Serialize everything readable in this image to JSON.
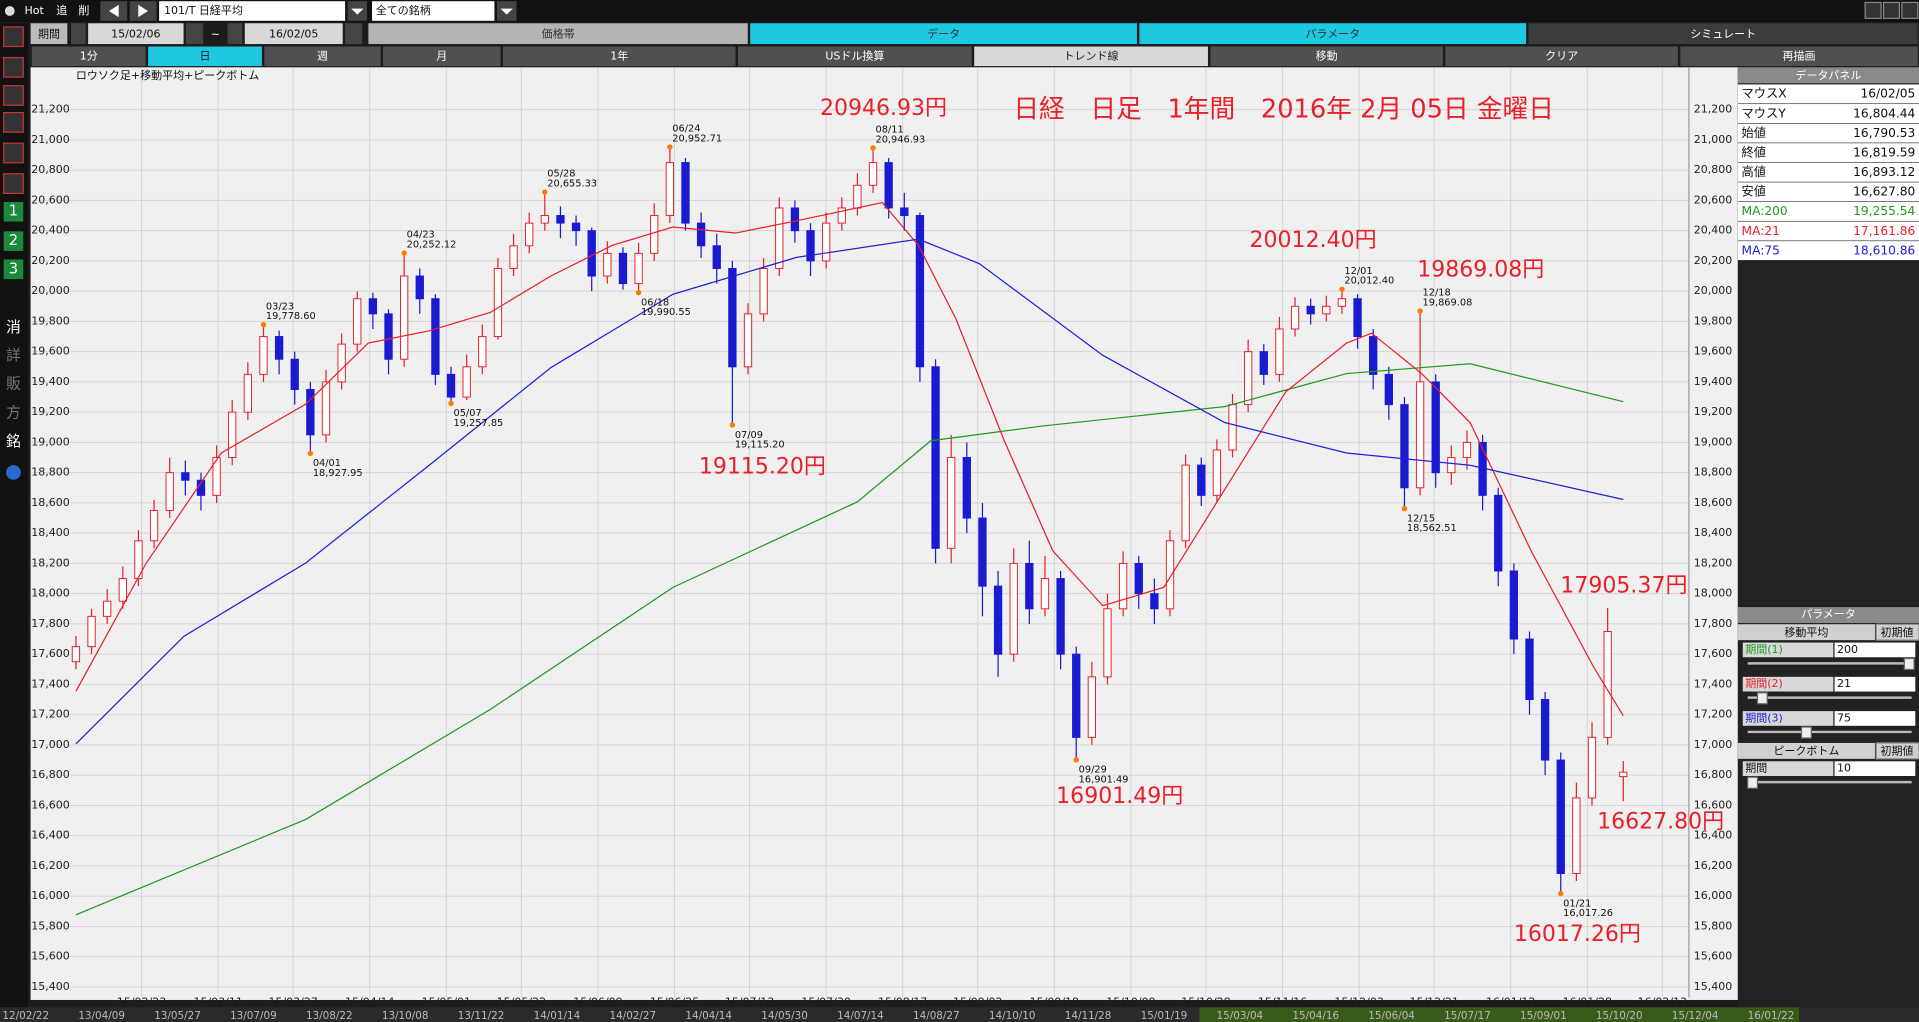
{
  "toolbar": {
    "hot": "Hot",
    "add": "追",
    "del": "削",
    "symbol": "101/T 日経平均",
    "universe": "全ての銘柄"
  },
  "period": {
    "label": "期間",
    "from": "15/02/06",
    "sep": "~",
    "to": "16/02/05"
  },
  "tabs": [
    "価格帯",
    "データ",
    "パラメータ",
    "シミュレート"
  ],
  "buttons": [
    "1分",
    "日",
    "週",
    "月",
    "1年",
    "USドル換算",
    "トレンド線",
    "移動",
    "クリア",
    "再描画"
  ],
  "sidebar": [
    "1",
    "2",
    "3",
    "消",
    "詳",
    "販",
    "方",
    "銘"
  ],
  "chart_data": {
    "type": "candlestick",
    "title": "日経　日足　1年間　2016年 2月 05日 金曜日",
    "subtitle": "ロウソク足+移動平均+ピークボトム",
    "up_color": "#e8202a",
    "down_color": "#1a1ad0",
    "grid": true,
    "xlim": [
      -2.9,
      103.2
    ],
    "ylim": [
      15330,
      21480
    ],
    "xticks": [
      {
        "value": 4.2,
        "label": "15/02/23"
      },
      {
        "value": 9.1,
        "label": "15/03/11"
      },
      {
        "value": 13.9,
        "label": "15/03/27"
      },
      {
        "value": 18.8,
        "label": "15/04/14"
      },
      {
        "value": 23.7,
        "label": "15/05/01"
      },
      {
        "value": 28.5,
        "label": "15/05/22"
      },
      {
        "value": 33.4,
        "label": "15/06/09"
      },
      {
        "value": 38.3,
        "label": "15/06/25"
      },
      {
        "value": 43.1,
        "label": "15/07/13"
      },
      {
        "value": 48.0,
        "label": "15/07/30"
      },
      {
        "value": 52.9,
        "label": "15/08/17"
      },
      {
        "value": 57.7,
        "label": "15/09/02"
      },
      {
        "value": 62.6,
        "label": "15/09/18"
      },
      {
        "value": 67.5,
        "label": "15/10/09"
      },
      {
        "value": 72.3,
        "label": "15/10/28"
      },
      {
        "value": 77.2,
        "label": "15/11/16"
      },
      {
        "value": 82.1,
        "label": "15/12/03"
      },
      {
        "value": 86.9,
        "label": "15/12/21"
      },
      {
        "value": 91.8,
        "label": "16/01/12"
      },
      {
        "value": 96.7,
        "label": "16/01/28"
      },
      {
        "value": 101.5,
        "label": "16/02/13"
      }
    ],
    "yticks": [
      {
        "value": 15400,
        "label": "15,400"
      },
      {
        "value": 15600,
        "label": "15,600"
      },
      {
        "value": 15800,
        "label": "15,800"
      },
      {
        "value": 16000,
        "label": "16,000"
      },
      {
        "value": 16200,
        "label": "16,200"
      },
      {
        "value": 16400,
        "label": "16,400"
      },
      {
        "value": 16600,
        "label": "16,600"
      },
      {
        "value": 16800,
        "label": "16,800"
      },
      {
        "value": 17000,
        "label": "17,000"
      },
      {
        "value": 17200,
        "label": "17,200"
      },
      {
        "value": 17400,
        "label": "17,400"
      },
      {
        "value": 17600,
        "label": "17,600"
      },
      {
        "value": 17800,
        "label": "17,800"
      },
      {
        "value": 18000,
        "label": "18,000"
      },
      {
        "value": 18200,
        "label": "18,200"
      },
      {
        "value": 18400,
        "label": "18,400"
      },
      {
        "value": 18600,
        "label": "18,600"
      },
      {
        "value": 18800,
        "label": "18,800"
      },
      {
        "value": 19000,
        "label": "19,000"
      },
      {
        "value": 19200,
        "label": "19,200"
      },
      {
        "value": 19400,
        "label": "19,400"
      },
      {
        "value": 19600,
        "label": "19,600"
      },
      {
        "value": 19800,
        "label": "19,800"
      },
      {
        "value": 20000,
        "label": "20,000"
      },
      {
        "value": 20200,
        "label": "20,200"
      },
      {
        "value": 20400,
        "label": "20,400"
      },
      {
        "value": 20600,
        "label": "20,600"
      },
      {
        "value": 20800,
        "label": "20,800"
      },
      {
        "value": 21000,
        "label": "21,000"
      },
      {
        "value": 21200,
        "label": "21,200"
      }
    ],
    "open": [
      17550,
      17650,
      17850,
      17950,
      18100,
      18350,
      18550,
      18800,
      18750,
      18650,
      18900,
      19200,
      19450,
      19700,
      19550,
      19350,
      19050,
      19400,
      19650,
      19950,
      19850,
      19550,
      20100,
      19950,
      19450,
      19300,
      19500,
      19700,
      20150,
      20300,
      20450,
      20500,
      20450,
      20400,
      20100,
      20250,
      20050,
      20250,
      20500,
      20850,
      20450,
      20300,
      20150,
      19500,
      19850,
      20150,
      20550,
      20400,
      20200,
      20450,
      20550,
      20700,
      20850,
      20550,
      20500,
      19500,
      18300,
      18900,
      18500,
      18050,
      17600,
      18200,
      17900,
      18100,
      17600,
      17050,
      17450,
      17900,
      18200,
      18000,
      17900,
      18350,
      18850,
      18650,
      18950,
      19250,
      19600,
      19450,
      19750,
      19900,
      19850,
      19900,
      19950,
      19700,
      19450,
      19250,
      18700,
      19400,
      18800,
      18900,
      19000,
      18650,
      18150,
      17700,
      17300,
      16900,
      16150,
      16650,
      17050,
      16790.53
    ],
    "high": [
      17720,
      17900,
      18030,
      18180,
      18420,
      18620,
      18900,
      18880,
      18800,
      18980,
      19280,
      19530,
      19778.6,
      19740,
      19600,
      19400,
      19480,
      19720,
      20000,
      19990,
      19880,
      20252.12,
      20150,
      19980,
      19500,
      19580,
      19780,
      20220,
      20380,
      20520,
      20655.33,
      20560,
      20500,
      20420,
      20330,
      20290,
      20320,
      20580,
      20952.71,
      20880,
      20520,
      20380,
      20200,
      19920,
      20220,
      20620,
      20600,
      20450,
      20520,
      20620,
      20780,
      20946.93,
      20880,
      20650,
      20520,
      19550,
      19050,
      19000,
      18600,
      18150,
      18300,
      18350,
      18250,
      18150,
      17650,
      17550,
      18000,
      18280,
      18250,
      18100,
      18420,
      18920,
      18900,
      19020,
      19320,
      19680,
      19650,
      19830,
      19960,
      19950,
      19970,
      20012.4,
      19980,
      19750,
      19500,
      19300,
      19869.08,
      19450,
      18980,
      19080,
      19050,
      18700,
      18200,
      17750,
      17350,
      16950,
      16750,
      17150,
      17905.37,
      16893.12
    ],
    "low": [
      17500,
      17600,
      17800,
      17900,
      18050,
      18300,
      18500,
      18650,
      18550,
      18600,
      18850,
      19150,
      19400,
      19450,
      19250,
      18927.95,
      19000,
      19350,
      19600,
      19750,
      19450,
      19500,
      19850,
      19380,
      19257.85,
      19280,
      19450,
      19680,
      20100,
      20250,
      20400,
      20350,
      20300,
      20000,
      20050,
      20010,
      19990.55,
      20200,
      20450,
      20400,
      20220,
      20050,
      19115.2,
      19450,
      19800,
      20100,
      20320,
      20100,
      20150,
      20400,
      20500,
      20650,
      20480,
      20400,
      19400,
      18200,
      18200,
      18400,
      17850,
      17450,
      17550,
      17800,
      17850,
      17500,
      16901.49,
      17000,
      17400,
      17850,
      17900,
      17800,
      17850,
      18300,
      18580,
      18600,
      18900,
      19200,
      19380,
      19400,
      19700,
      19780,
      19800,
      19850,
      19620,
      19350,
      19150,
      18562.51,
      18650,
      18700,
      18720,
      18820,
      18550,
      18050,
      17600,
      17200,
      16800,
      16017.26,
      16100,
      16600,
      17000,
      16627.8
    ],
    "close": [
      17650,
      17850,
      17950,
      18100,
      18350,
      18550,
      18800,
      18750,
      18650,
      18900,
      19200,
      19450,
      19700,
      19550,
      19350,
      19050,
      19400,
      19650,
      19950,
      19850,
      19550,
      20100,
      19950,
      19450,
      19300,
      19500,
      19700,
      20150,
      20300,
      20450,
      20500,
      20450,
      20400,
      20100,
      20250,
      20050,
      20250,
      20500,
      20850,
      20450,
      20300,
      20150,
      19500,
      19850,
      20150,
      20550,
      20400,
      20200,
      20450,
      20550,
      20700,
      20850,
      20550,
      20500,
      19500,
      18300,
      18900,
      18500,
      18050,
      17600,
      18200,
      17900,
      18100,
      17600,
      17050,
      17450,
      17900,
      18200,
      18000,
      17900,
      18350,
      18850,
      18650,
      18950,
      19250,
      19600,
      19450,
      19750,
      19900,
      19850,
      19900,
      19950,
      19700,
      19450,
      19250,
      18700,
      19400,
      18800,
      18900,
      19000,
      18650,
      18150,
      17700,
      17300,
      16900,
      16150,
      16650,
      17050,
      17750,
      16819.59
    ],
    "series": [
      {
        "name": "MA:200",
        "color": "#1f9a1f",
        "x": [
          0,
          14.7,
          26.5,
          38.2,
          50,
          54.7,
          61.8,
          73.5,
          81.3,
          89.2,
          99
        ],
        "values": [
          15877,
          16507,
          17234,
          18042,
          18607,
          19011,
          19108,
          19237,
          19455,
          19520,
          19269
        ]
      },
      {
        "name": "MA:21",
        "color": "#e8202a",
        "x": [
          0,
          4.5,
          9.3,
          14.7,
          18.7,
          22.6,
          26.5,
          30.4,
          34.3,
          38.2,
          42.2,
          46.1,
          51.6,
          53.9,
          56.3,
          59.4,
          62.5,
          65.7,
          69.6,
          73.5,
          77.4,
          81.3,
          82.9,
          86.1,
          89.2,
          93.1,
          97.1,
          99
        ],
        "values": [
          17355,
          18203,
          18930,
          19253,
          19657,
          19738,
          19859,
          20101,
          20303,
          20424,
          20384,
          20465,
          20586,
          20303,
          19819,
          19011,
          18284,
          17920,
          18042,
          18688,
          19334,
          19657,
          19722,
          19455,
          19132,
          18284,
          17516,
          17193
        ]
      },
      {
        "name": "MA:75",
        "color": "#2020d8",
        "x": [
          0,
          6.9,
          14.7,
          22.6,
          30.4,
          38.2,
          46.1,
          53.9,
          57.8,
          65.7,
          73.5,
          81.3,
          89.2,
          99
        ],
        "values": [
          17007,
          17718,
          18203,
          18849,
          19496,
          19980,
          20223,
          20344,
          20182,
          19576,
          19132,
          18930,
          18849,
          18623
        ]
      }
    ],
    "peaks": [
      {
        "date": "03/23",
        "value": 19778.6,
        "label": "19,778.60"
      },
      {
        "date": "04/01",
        "value": 18927.95,
        "label": "18,927.95"
      },
      {
        "date": "04/23",
        "value": 20252.12,
        "label": "20,252.12"
      },
      {
        "date": "05/07",
        "value": 19257.85,
        "label": "19,257.85"
      },
      {
        "date": "05/28",
        "value": 20655.33,
        "label": "20,655.33"
      },
      {
        "date": "06/18",
        "value": 19990.55,
        "label": "19,990.55"
      },
      {
        "date": "06/24",
        "value": 20952.71,
        "label": "20,952.71"
      },
      {
        "date": "07/09",
        "value": 19115.2,
        "label": "19,115.20"
      },
      {
        "date": "08/11",
        "value": 20946.93,
        "label": "20,946.93"
      },
      {
        "date": "09/29",
        "value": 16901.49,
        "label": "16,901.49"
      },
      {
        "date": "12/01",
        "value": 20012.4,
        "label": "20,012.40"
      },
      {
        "date": "12/15",
        "value": 18562.51,
        "label": "18,562.51"
      },
      {
        "date": "12/18",
        "value": 19869.08,
        "label": "19,869.08"
      },
      {
        "date": "01/21",
        "value": 16017.26,
        "label": "16,017.26"
      }
    ],
    "annotations": [
      "20946.93円",
      "20012.40円",
      "19869.08円",
      "19115.20円",
      "17905.37円",
      "16901.49円",
      "16627.80円",
      "16017.26円"
    ]
  },
  "overview": [
    "12/02/22",
    "13/04/09",
    "13/05/27",
    "13/07/09",
    "13/08/22",
    "13/10/08",
    "13/11/22",
    "14/01/14",
    "14/02/27",
    "14/04/14",
    "14/05/30",
    "14/07/14",
    "14/08/27",
    "14/10/10",
    "14/11/28",
    "15/01/19",
    "15/03/04",
    "15/04/16",
    "15/06/04",
    "15/07/17",
    "15/09/01",
    "15/10/20",
    "15/12/04",
    "16/01/22"
  ],
  "data_panel": {
    "title": "データパネル",
    "rows": [
      [
        "マウスX",
        "16/02/05"
      ],
      [
        "マウスY",
        "16,804.44"
      ],
      [
        "始値",
        "16,790.53"
      ],
      [
        "終値",
        "16,819.59"
      ],
      [
        "高値",
        "16,893.12"
      ],
      [
        "安値",
        "16,627.80"
      ],
      [
        "MA:200",
        "19,255.54"
      ],
      [
        "MA:21",
        "17,161.86"
      ],
      [
        "MA:75",
        "18,610.86"
      ]
    ]
  },
  "param_panel": {
    "title": "パラメータ",
    "ma_title": "移動平均",
    "peak_title": "ピークボトム",
    "reset": "初期値",
    "ma_rows": [
      [
        "期間(1)",
        "200"
      ],
      [
        "期間(2)",
        "21"
      ],
      [
        "期間(3)",
        "75"
      ]
    ],
    "peak_rows": [
      [
        "期間",
        "10"
      ]
    ]
  }
}
